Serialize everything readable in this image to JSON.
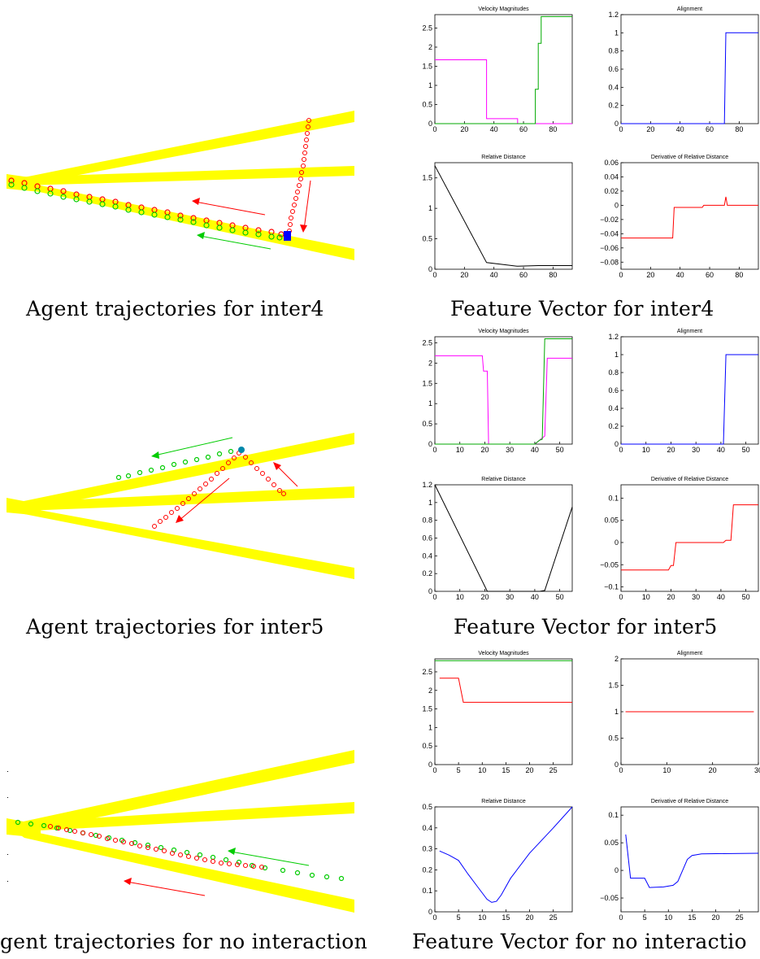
{
  "colors": {
    "road": "#ffff00",
    "red": "#ff0000",
    "green": "#00dd00",
    "blue": "#0000ff",
    "magenta": "#ff00ff",
    "black": "#000000"
  },
  "rows": [
    {
      "caption_left": "Agent trajectories for inter4",
      "caption_right": "Feature Vector for inter4"
    },
    {
      "caption_left": "Agent trajectories for inter5",
      "caption_right": "Feature Vector for inter5"
    },
    {
      "caption_left": "gent trajectories for no interaction",
      "caption_right": "Feature Vector for no interactio"
    }
  ],
  "chart_data": [
    {
      "row": 0,
      "title": "Velocity Magnitudes",
      "type": "line",
      "xlim": [
        0,
        93
      ],
      "ylim": [
        0,
        2.85
      ],
      "xticks": [
        0,
        20,
        40,
        60,
        80
      ],
      "yticks": [
        0,
        0.5,
        1,
        1.5,
        2,
        2.5
      ],
      "series": [
        {
          "color": "#ff00ff",
          "x": [
            0,
            35,
            35,
            56,
            56,
            93
          ],
          "y": [
            1.67,
            1.67,
            0.13,
            0.13,
            0,
            0
          ]
        },
        {
          "color": "#00aa00",
          "x": [
            0,
            68,
            68,
            70,
            70,
            72,
            72,
            93
          ],
          "y": [
            0,
            0,
            0.9,
            0.9,
            2.1,
            2.1,
            2.8,
            2.8
          ]
        }
      ]
    },
    {
      "row": 0,
      "title": "Alignment",
      "type": "line",
      "xlim": [
        0,
        93
      ],
      "ylim": [
        0,
        1.2
      ],
      "xticks": [
        0,
        20,
        40,
        60,
        80
      ],
      "yticks": [
        0,
        0.2,
        0.4,
        0.6,
        0.8,
        1,
        1.2
      ],
      "series": [
        {
          "color": "#0000ff",
          "x": [
            0,
            70,
            71,
            93
          ],
          "y": [
            0,
            0,
            1,
            1
          ]
        }
      ]
    },
    {
      "row": 0,
      "title": "Relative Distance",
      "type": "line",
      "xlim": [
        0,
        93
      ],
      "ylim": [
        0,
        1.75
      ],
      "xticks": [
        0,
        20,
        40,
        60,
        80
      ],
      "yticks": [
        0,
        0.5,
        1,
        1.5
      ],
      "series": [
        {
          "color": "#000000",
          "x": [
            0,
            35,
            56,
            70,
            93
          ],
          "y": [
            1.7,
            0.11,
            0.05,
            0.06,
            0.06
          ]
        }
      ]
    },
    {
      "row": 0,
      "title": "Derivative of Relative Distance",
      "type": "line",
      "xlim": [
        0,
        93
      ],
      "ylim": [
        -0.09,
        0.06
      ],
      "xticks": [
        0,
        20,
        40,
        60,
        80
      ],
      "yticks": [
        -0.08,
        -0.06,
        -0.04,
        -0.02,
        0,
        0.02,
        0.04,
        0.06
      ],
      "series": [
        {
          "color": "#ff0000",
          "x": [
            0,
            35,
            36,
            55,
            56,
            70,
            71,
            72,
            93
          ],
          "y": [
            -0.046,
            -0.046,
            -0.003,
            -0.003,
            0,
            0,
            0.012,
            0,
            0
          ]
        }
      ]
    },
    {
      "row": 1,
      "title": "Velocity Magnitudes",
      "type": "line",
      "xlim": [
        0,
        55
      ],
      "ylim": [
        0,
        2.65
      ],
      "xticks": [
        0,
        10,
        20,
        30,
        40,
        50
      ],
      "yticks": [
        0,
        0.5,
        1,
        1.5,
        2,
        2.5
      ],
      "series": [
        {
          "color": "#ff00ff",
          "x": [
            0,
            19,
            19.5,
            21,
            21.5,
            40,
            43,
            44,
            45,
            55
          ],
          "y": [
            2.18,
            2.18,
            1.8,
            1.8,
            0,
            0,
            0.15,
            0.2,
            2.12,
            2.12
          ]
        },
        {
          "color": "#00aa00",
          "x": [
            0,
            40,
            42,
            43,
            44,
            55
          ],
          "y": [
            0,
            0,
            0.1,
            0.12,
            2.6,
            2.6
          ]
        }
      ]
    },
    {
      "row": 1,
      "title": "Alignment",
      "type": "line",
      "xlim": [
        0,
        55
      ],
      "ylim": [
        0,
        1.2
      ],
      "xticks": [
        0,
        10,
        20,
        30,
        40,
        50
      ],
      "yticks": [
        0,
        0.2,
        0.4,
        0.6,
        0.8,
        1,
        1.2
      ],
      "series": [
        {
          "color": "#0000ff",
          "x": [
            0,
            41,
            42,
            55
          ],
          "y": [
            0,
            0,
            1,
            1
          ]
        }
      ]
    },
    {
      "row": 1,
      "title": "Relative Distance",
      "type": "line",
      "xlim": [
        0,
        55
      ],
      "ylim": [
        0,
        1.2
      ],
      "xticks": [
        0,
        10,
        20,
        30,
        40,
        50
      ],
      "yticks": [
        0,
        0.2,
        0.4,
        0.6,
        0.8,
        1,
        1.2
      ],
      "series": [
        {
          "color": "#000000",
          "x": [
            0,
            21,
            42,
            44,
            55
          ],
          "y": [
            1.2,
            0,
            0,
            0.01,
            0.95
          ]
        }
      ]
    },
    {
      "row": 1,
      "title": "Derivative of Relative Distance",
      "type": "line",
      "xlim": [
        0,
        55
      ],
      "ylim": [
        -0.11,
        0.13
      ],
      "xticks": [
        0,
        10,
        20,
        30,
        40,
        50
      ],
      "yticks": [
        -0.1,
        -0.05,
        0,
        0.05,
        0.1
      ],
      "series": [
        {
          "color": "#ff0000",
          "x": [
            0,
            19,
            20,
            21,
            22,
            41,
            42,
            44,
            45,
            55
          ],
          "y": [
            -0.062,
            -0.062,
            -0.052,
            -0.052,
            0,
            0,
            0.005,
            0.005,
            0.085,
            0.085
          ]
        }
      ]
    },
    {
      "row": 2,
      "title": "Velocity Magnitudes",
      "type": "line",
      "xlim": [
        0,
        29
      ],
      "ylim": [
        0,
        2.85
      ],
      "xticks": [
        0,
        5,
        10,
        15,
        20,
        25
      ],
      "yticks": [
        0,
        0.5,
        1,
        1.5,
        2,
        2.5
      ],
      "series": [
        {
          "color": "#00aa00",
          "x": [
            0,
            29
          ],
          "y": [
            2.8,
            2.8
          ]
        },
        {
          "color": "#ff0000",
          "x": [
            1,
            5,
            6,
            29
          ],
          "y": [
            2.33,
            2.33,
            1.68,
            1.68
          ]
        }
      ]
    },
    {
      "row": 2,
      "title": "Alignment",
      "type": "line",
      "xlim": [
        0,
        30
      ],
      "ylim": [
        0,
        2
      ],
      "xticks": [
        0,
        10,
        20,
        30
      ],
      "yticks": [
        0,
        0.5,
        1,
        1.5,
        2
      ],
      "series": [
        {
          "color": "#ff0000",
          "x": [
            1,
            29
          ],
          "y": [
            1,
            1
          ]
        }
      ]
    },
    {
      "row": 2,
      "title": "Relative Distance",
      "type": "line",
      "xlim": [
        0,
        29
      ],
      "ylim": [
        0,
        0.5
      ],
      "xticks": [
        0,
        5,
        10,
        15,
        20,
        25
      ],
      "yticks": [
        0,
        0.1,
        0.2,
        0.3,
        0.4,
        0.5
      ],
      "series": [
        {
          "color": "#0000ff",
          "x": [
            1,
            3,
            5,
            7,
            9,
            11,
            12,
            13,
            14,
            16,
            20,
            25,
            29
          ],
          "y": [
            0.29,
            0.27,
            0.245,
            0.18,
            0.12,
            0.06,
            0.045,
            0.05,
            0.08,
            0.16,
            0.28,
            0.4,
            0.5
          ]
        }
      ]
    },
    {
      "row": 2,
      "title": "Derivative of Relative Distance",
      "type": "line",
      "xlim": [
        0,
        29
      ],
      "ylim": [
        -0.075,
        0.115
      ],
      "xticks": [
        0,
        5,
        10,
        15,
        20,
        25
      ],
      "yticks": [
        -0.05,
        0,
        0.05,
        0.1
      ],
      "series": [
        {
          "color": "#0000ff",
          "x": [
            1,
            2,
            3,
            5,
            6,
            9,
            11,
            12,
            13,
            14,
            15,
            17,
            29
          ],
          "y": [
            0.065,
            -0.014,
            -0.014,
            -0.014,
            -0.031,
            -0.03,
            -0.027,
            -0.02,
            0,
            0.02,
            0.027,
            0.03,
            0.031
          ]
        }
      ]
    }
  ]
}
